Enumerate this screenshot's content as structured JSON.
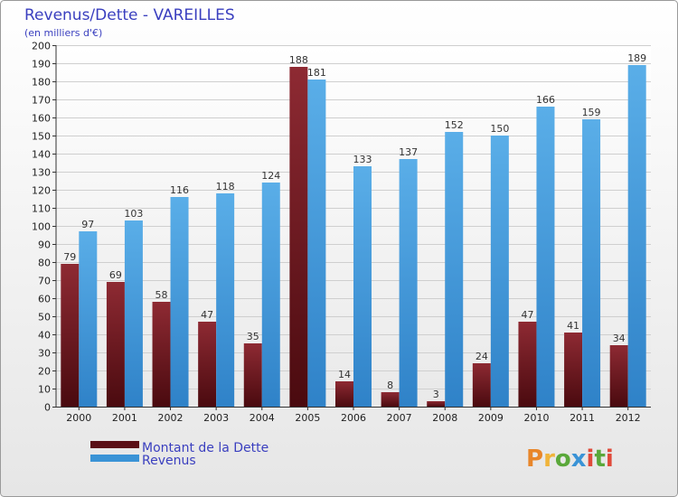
{
  "chart_data": {
    "type": "bar",
    "title": "Revenus/Dette - VAREILLES",
    "subtitle": "(en milliers d'€)",
    "categories": [
      "2000",
      "2001",
      "2002",
      "2003",
      "2004",
      "2005",
      "2006",
      "2007",
      "2008",
      "2009",
      "2010",
      "2011",
      "2012"
    ],
    "series": [
      {
        "name": "Montant de la Dette",
        "color": "#7a1a22",
        "values": [
          79,
          69,
          58,
          47,
          35,
          188,
          14,
          8,
          3,
          24,
          47,
          41,
          34
        ]
      },
      {
        "name": "Revenus",
        "color": "#3a93d6",
        "values": [
          97,
          103,
          116,
          118,
          124,
          181,
          133,
          137,
          152,
          150,
          166,
          159,
          189
        ]
      }
    ],
    "ylim": [
      0,
      200
    ],
    "ytick_step": 10,
    "grid": true,
    "legend_position": "bottom-left"
  },
  "brand": {
    "text": "Proxiti"
  }
}
